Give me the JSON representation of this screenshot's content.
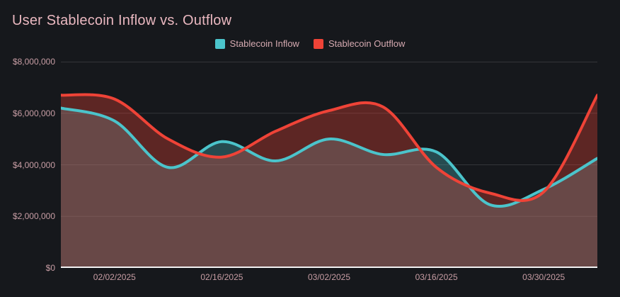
{
  "title": "User Stablecoin Inflow vs. Outflow",
  "colors": {
    "background": "#16181c",
    "title_text": "#eab8c0",
    "axis_text": "#c79da4",
    "legend_text": "#d6aab1",
    "inflow": "#4bc4cb",
    "outflow": "#ef4337",
    "gridline": "rgba(255,255,255,0.13)",
    "zero_axis_line": "#f2f2f2"
  },
  "legend": {
    "items": [
      {
        "label": "Stablecoin Inflow",
        "swatch_color": "#4bc4cb"
      },
      {
        "label": "Stablecoin Outflow",
        "swatch_color": "#ef4337"
      }
    ],
    "position": "top-center"
  },
  "chart_data": {
    "type": "area",
    "title": "User Stablecoin Inflow vs. Outflow",
    "x": [
      "01/26/2025",
      "02/02/2025",
      "02/09/2025",
      "02/16/2025",
      "02/23/2025",
      "03/02/2025",
      "03/09/2025",
      "03/16/2025",
      "03/23/2025",
      "03/30/2025",
      "04/06/2025"
    ],
    "x_tick_labels": [
      "02/02/2025",
      "02/16/2025",
      "03/02/2025",
      "03/16/2025",
      "03/30/2025"
    ],
    "x_tick_indices": [
      1,
      3,
      5,
      7,
      9
    ],
    "series": [
      {
        "name": "Stablecoin Inflow",
        "color": "#4bc4cb",
        "fill_opacity": 0.3,
        "values": [
          6200000,
          5700000,
          3900000,
          4900000,
          4150000,
          5000000,
          4400000,
          4500000,
          2450000,
          3050000,
          4250000
        ]
      },
      {
        "name": "Stablecoin Outflow",
        "color": "#ef4337",
        "fill_opacity": 0.33,
        "values": [
          6700000,
          6550000,
          5000000,
          4300000,
          5300000,
          6100000,
          6250000,
          3900000,
          2900000,
          2950000,
          6700000
        ]
      }
    ],
    "y_ticks": [
      {
        "value": 8000000,
        "label": "$8,000,000"
      },
      {
        "value": 6000000,
        "label": "$6,000,000"
      },
      {
        "value": 4000000,
        "label": "$4,000,000"
      },
      {
        "value": 2000000,
        "label": "$2,000,000"
      },
      {
        "value": 0,
        "label": "$0"
      }
    ],
    "ylim": [
      0,
      8000000
    ],
    "grid": "horizontal",
    "curve": "smooth-spline",
    "legend_position": "top-center"
  }
}
